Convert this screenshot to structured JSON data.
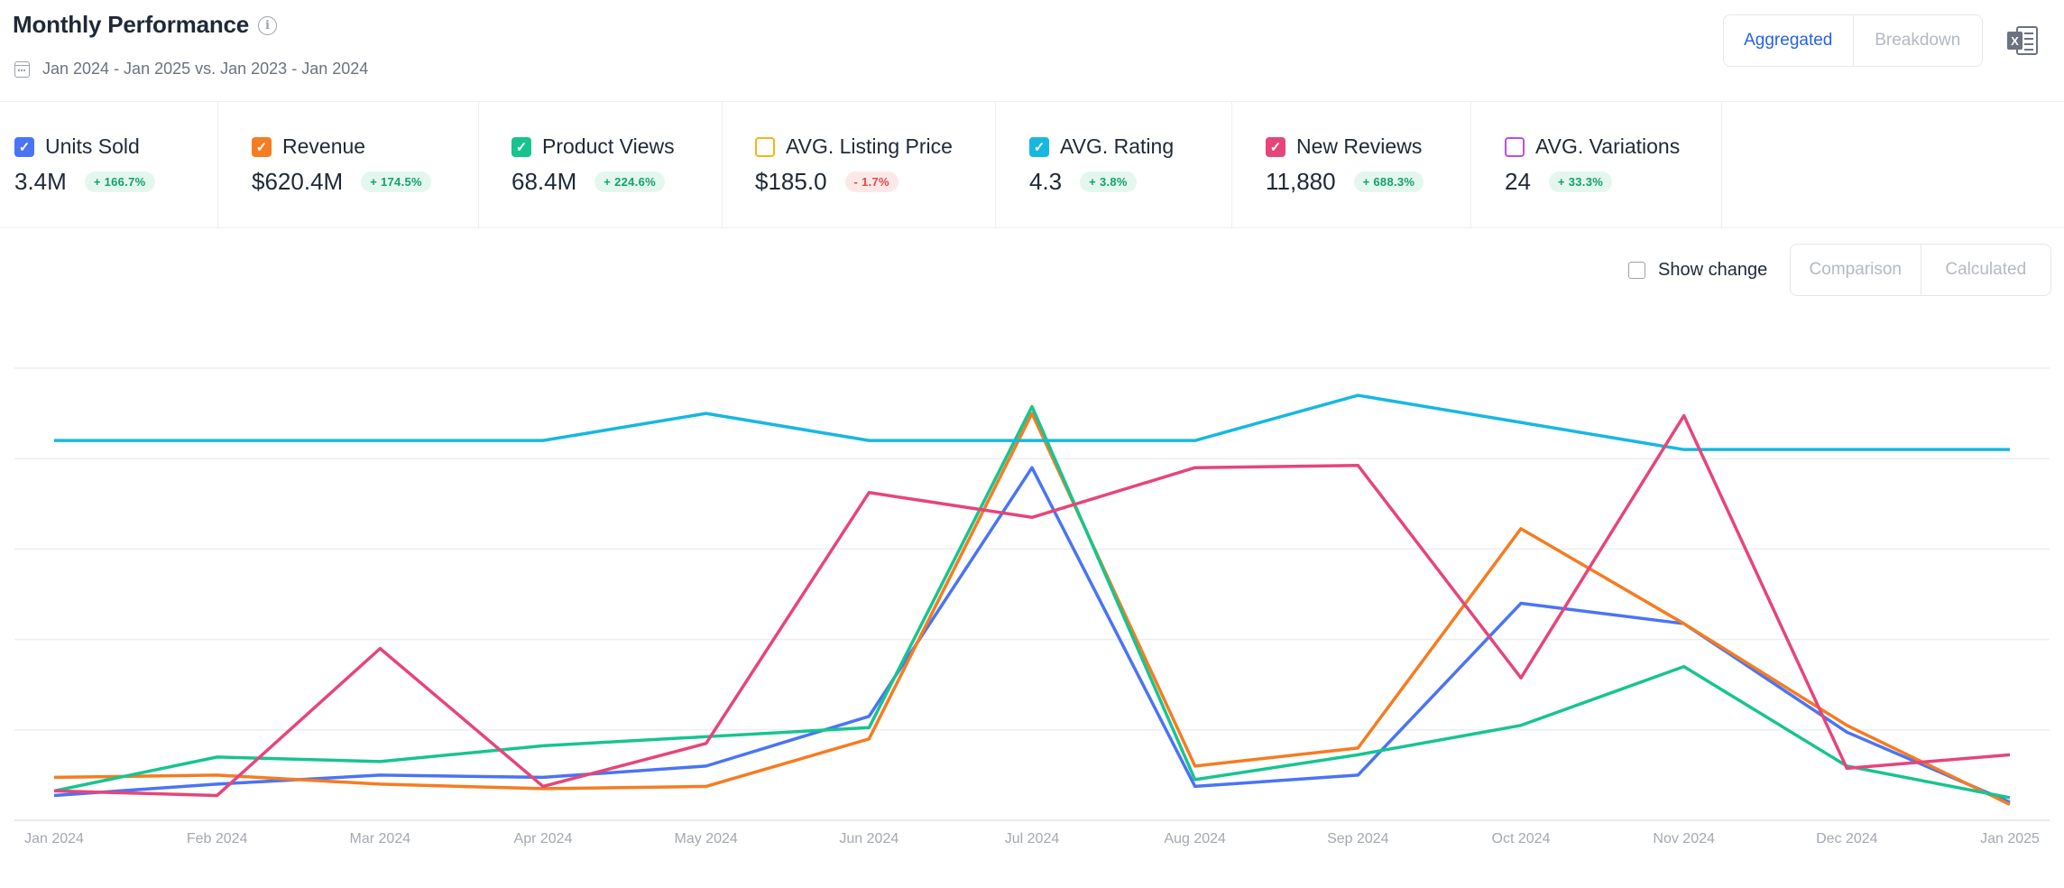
{
  "header": {
    "title": "Monthly Performance",
    "info_icon": "info-icon",
    "date_range": "Jan 2024 - Jan 2025 vs. Jan 2023 - Jan 2024",
    "calendar_icon": "calendar-icon",
    "view_toggle": {
      "aggregated": "Aggregated",
      "breakdown": "Breakdown",
      "selected": "Aggregated"
    },
    "export_icon": "excel-export-icon"
  },
  "metrics": [
    {
      "label": "Units Sold",
      "value": "3.4M",
      "change": "+ 166.7%",
      "direction": "up",
      "checked": true,
      "color": "#4a74f5"
    },
    {
      "label": "Revenue",
      "value": "$620.4M",
      "change": "+ 174.5%",
      "direction": "up",
      "checked": true,
      "color": "#f57c22"
    },
    {
      "label": "Product Views",
      "value": "68.4M",
      "change": "+ 224.6%",
      "direction": "up",
      "checked": true,
      "color": "#17c48f"
    },
    {
      "label": "AVG. Listing Price",
      "value": "$185.0",
      "change": "- 1.7%",
      "direction": "down",
      "checked": false,
      "color": "#f5b419"
    },
    {
      "label": "AVG. Rating",
      "value": "4.3",
      "change": "+ 3.8%",
      "direction": "up",
      "checked": true,
      "color": "#17b8e0"
    },
    {
      "label": "New Reviews",
      "value": "11,880",
      "change": "+ 688.3%",
      "direction": "up",
      "checked": true,
      "color": "#e6457a"
    },
    {
      "label": "AVG. Variations",
      "value": "24",
      "change": "+ 33.3%",
      "direction": "up",
      "checked": false,
      "color": "#b84ef5"
    }
  ],
  "controls": {
    "show_change_label": "Show change",
    "show_change_checked": false,
    "comparison": "Comparison",
    "calculated": "Calculated"
  },
  "chart_data": {
    "type": "line",
    "x": [
      "Jan 2024",
      "Feb 2024",
      "Mar 2024",
      "Apr 2024",
      "May 2024",
      "Jun 2024",
      "Jul 2024",
      "Aug 2024",
      "Sep 2024",
      "Oct 2024",
      "Nov 2024",
      "Dec 2024",
      "Jan 2025"
    ],
    "ylim": [
      0,
      100
    ],
    "y_axis_labels_shown": false,
    "grid": "horizontal",
    "gridlines": 5,
    "series": [
      {
        "name": "Units Sold",
        "color": "#4a74f5",
        "values": [
          5.5,
          8,
          10,
          9.5,
          12,
          23,
          78,
          7.5,
          10,
          48,
          43.5,
          19.5,
          4
        ]
      },
      {
        "name": "Revenue",
        "color": "#f57c22",
        "values": [
          9.5,
          10,
          8,
          7,
          7.5,
          18,
          90,
          12,
          16,
          64.5,
          43.5,
          21,
          3.5
        ]
      },
      {
        "name": "Product Views",
        "color": "#17c48f",
        "values": [
          6.5,
          14,
          13,
          16.5,
          18.5,
          20.5,
          91.5,
          9,
          14.5,
          21,
          34,
          12,
          5
        ]
      },
      {
        "name": "AVG. Rating",
        "color": "#17b8e0",
        "values": [
          84,
          84,
          84,
          84,
          90,
          84,
          84,
          84,
          94,
          88,
          82,
          82,
          82
        ]
      },
      {
        "name": "New Reviews",
        "color": "#e6457a",
        "values": [
          6.5,
          5.5,
          38,
          7.5,
          17,
          72.5,
          67,
          78,
          78.5,
          31.5,
          89.5,
          11.5,
          14.5
        ]
      }
    ]
  }
}
